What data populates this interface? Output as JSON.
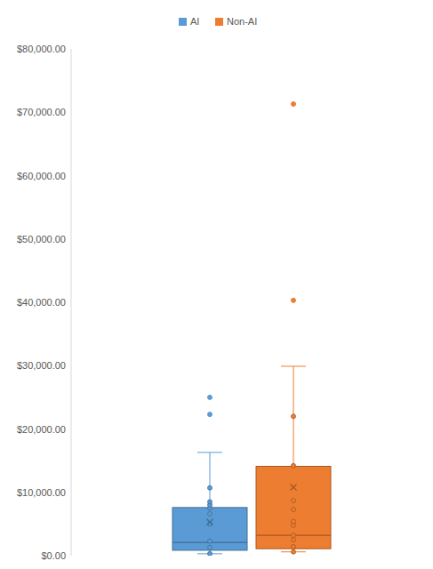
{
  "chart_data": {
    "type": "box",
    "ylim": [
      0,
      80000
    ],
    "yticks": [
      {
        "value": 0,
        "label": "$0.00"
      },
      {
        "value": 10000,
        "label": "$10,000.00"
      },
      {
        "value": 20000,
        "label": "$20,000.00"
      },
      {
        "value": 30000,
        "label": "$30,000.00"
      },
      {
        "value": 40000,
        "label": "$40,000.00"
      },
      {
        "value": 50000,
        "label": "$50,000.00"
      },
      {
        "value": 60000,
        "label": "$60,000.00"
      },
      {
        "value": 70000,
        "label": "$70,000.00"
      },
      {
        "value": 80000,
        "label": "$80,000.00"
      }
    ],
    "grid": false,
    "legend": "top",
    "series": [
      {
        "name": "AI",
        "color": "#5b9bd5",
        "whisker_low": 300,
        "q1": 850,
        "median": 2100,
        "q3": 7600,
        "whisker_high": 16300,
        "mean": 5300,
        "points": [
          300,
          1300,
          2300,
          5000,
          6600,
          7500,
          8000,
          8500,
          10700
        ],
        "outliers": [
          22300,
          25000
        ]
      },
      {
        "name": "Non-AI",
        "color": "#ed7d31",
        "whisker_low": 600,
        "q1": 1100,
        "median": 3200,
        "q3": 14100,
        "whisker_high": 29900,
        "mean": 10800,
        "points": [
          600,
          1400,
          2500,
          3200,
          4800,
          5400,
          7300,
          8700,
          14200,
          22000
        ],
        "outliers": [
          40300,
          71300
        ]
      }
    ]
  }
}
